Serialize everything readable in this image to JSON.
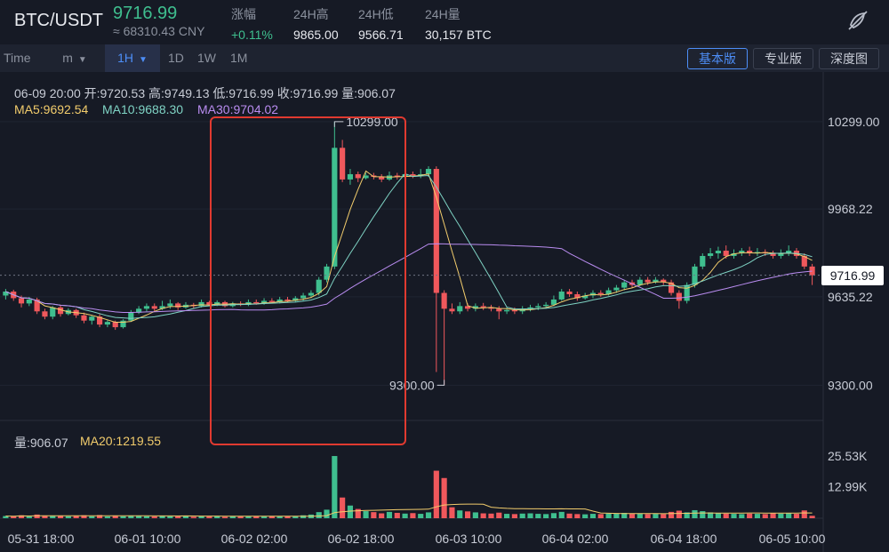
{
  "header": {
    "pair": "BTC/USDT",
    "last_price": "9716.99",
    "cny_price": "≈ 68310.43 CNY",
    "stats": [
      {
        "label": "涨幅",
        "value": "+0.11%",
        "up": true
      },
      {
        "label": "24H高",
        "value": "9865.00",
        "up": false
      },
      {
        "label": "24H低",
        "value": "9566.71",
        "up": false
      },
      {
        "label": "24H量",
        "value": "30,157 BTC",
        "up": false
      }
    ],
    "icon": "chart-settings-icon"
  },
  "toolbar": {
    "time_label": "Time",
    "minute_label": "m",
    "hour_label": "1H",
    "day_label": "1D",
    "week_label": "1W",
    "month_label": "1M",
    "basic_label": "基本版",
    "pro_label": "专业版",
    "depth_label": "深度图",
    "active_interval": "1H",
    "active_version": "基本版"
  },
  "legend": {
    "ohlc": "06-09 20:00  开:9720.53  高:9749.13  低:9716.99  收:9716.99  量:906.07",
    "ma5": "MA5:9692.54",
    "ma10": "MA10:9688.30",
    "ma30": "MA30:9704.02",
    "volume": "量:906.07",
    "ma20": "MA20:1219.55"
  },
  "colors": {
    "up": "#3fbf8f",
    "down": "#f0585c",
    "ma5": "#f2cc6c",
    "ma10": "#7fd3c4",
    "ma30": "#b98cf0",
    "annotation": "#e03a30",
    "accent": "#4d8ef7"
  },
  "chart_data": {
    "type": "candlestick",
    "title": "",
    "ylim": [
      9180,
      10420
    ],
    "y_ticks": [
      "10299.00",
      "9968.22",
      "9635.22",
      "9300.00"
    ],
    "x_ticks": [
      "05-31 18:00",
      "06-01 10:00",
      "06-02 02:00",
      "06-02 18:00",
      "06-03 10:00",
      "06-04 02:00",
      "06-04 18:00",
      "06-05 10:00"
    ],
    "current_price": "9716.99",
    "annotations": {
      "high": "10299.00",
      "low": "9300.00"
    },
    "volume_ticks": [
      "25.53K",
      "12.99K"
    ],
    "volume_max": 27000,
    "candles": [
      [
        9640,
        9655,
        9625,
        9665
      ],
      [
        9655,
        9630,
        9620,
        9662
      ],
      [
        9630,
        9610,
        9595,
        9640
      ],
      [
        9610,
        9625,
        9600,
        9635
      ],
      [
        9625,
        9580,
        9570,
        9632
      ],
      [
        9580,
        9560,
        9550,
        9590
      ],
      [
        9560,
        9595,
        9550,
        9600
      ],
      [
        9595,
        9570,
        9560,
        9605
      ],
      [
        9570,
        9585,
        9565,
        9592
      ],
      [
        9585,
        9565,
        9555,
        9590
      ],
      [
        9565,
        9545,
        9535,
        9575
      ],
      [
        9545,
        9560,
        9530,
        9565
      ],
      [
        9560,
        9530,
        9520,
        9570
      ],
      [
        9530,
        9540,
        9520,
        9548
      ],
      [
        9540,
        9520,
        9510,
        9545
      ],
      [
        9520,
        9545,
        9515,
        9550
      ],
      [
        9545,
        9575,
        9540,
        9585
      ],
      [
        9575,
        9590,
        9570,
        9600
      ],
      [
        9590,
        9600,
        9580,
        9610
      ],
      [
        9600,
        9590,
        9580,
        9610
      ],
      [
        9590,
        9600,
        9585,
        9620
      ],
      [
        9600,
        9610,
        9590,
        9625
      ],
      [
        9610,
        9595,
        9585,
        9615
      ],
      [
        9595,
        9605,
        9590,
        9615
      ],
      [
        9605,
        9600,
        9590,
        9612
      ],
      [
        9600,
        9615,
        9595,
        9625
      ],
      [
        9615,
        9605,
        9600,
        9620
      ],
      [
        9605,
        9615,
        9600,
        9622
      ],
      [
        9615,
        9600,
        9595,
        9620
      ],
      [
        9600,
        9610,
        9595,
        9616
      ],
      [
        9610,
        9605,
        9600,
        9618
      ],
      [
        9605,
        9615,
        9600,
        9625
      ],
      [
        9615,
        9610,
        9605,
        9625
      ],
      [
        9610,
        9620,
        9605,
        9630
      ],
      [
        9620,
        9615,
        9610,
        9630
      ],
      [
        9615,
        9625,
        9610,
        9635
      ],
      [
        9625,
        9620,
        9615,
        9635
      ],
      [
        9620,
        9630,
        9615,
        9638
      ],
      [
        9630,
        9640,
        9620,
        9650
      ],
      [
        9640,
        9650,
        9630,
        9660
      ],
      [
        9650,
        9700,
        9640,
        9710
      ],
      [
        9700,
        9750,
        9690,
        9760
      ],
      [
        9750,
        10200,
        9740,
        10299
      ],
      [
        10200,
        10080,
        10070,
        10230
      ],
      [
        10080,
        10100,
        10060,
        10120
      ],
      [
        10100,
        10085,
        10070,
        10110
      ],
      [
        10085,
        10095,
        10080,
        10105
      ],
      [
        10095,
        10090,
        10080,
        10105
      ],
      [
        10090,
        10080,
        10070,
        10100
      ],
      [
        10080,
        10095,
        10075,
        10110
      ],
      [
        10095,
        10090,
        10080,
        10105
      ],
      [
        10090,
        10100,
        10085,
        10110
      ],
      [
        10100,
        10095,
        10085,
        10110
      ],
      [
        10095,
        10100,
        10085,
        10120
      ],
      [
        10100,
        10120,
        10090,
        10130
      ],
      [
        10120,
        9650,
        9350,
        10130
      ],
      [
        9650,
        9590,
        9300,
        9660
      ],
      [
        9590,
        9580,
        9570,
        9610
      ],
      [
        9580,
        9600,
        9570,
        9615
      ],
      [
        9600,
        9590,
        9580,
        9610
      ],
      [
        9590,
        9600,
        9580,
        9610
      ],
      [
        9600,
        9595,
        9585,
        9612
      ],
      [
        9595,
        9590,
        9580,
        9605
      ],
      [
        9590,
        9580,
        9550,
        9600
      ],
      [
        9580,
        9585,
        9570,
        9595
      ],
      [
        9585,
        9580,
        9570,
        9595
      ],
      [
        9580,
        9590,
        9570,
        9600
      ],
      [
        9590,
        9595,
        9580,
        9605
      ],
      [
        9595,
        9600,
        9585,
        9610
      ],
      [
        9600,
        9605,
        9590,
        9615
      ],
      [
        9605,
        9625,
        9600,
        9640
      ],
      [
        9625,
        9655,
        9620,
        9665
      ],
      [
        9655,
        9645,
        9635,
        9665
      ],
      [
        9645,
        9630,
        9620,
        9655
      ],
      [
        9630,
        9640,
        9625,
        9650
      ],
      [
        9640,
        9650,
        9630,
        9660
      ],
      [
        9650,
        9645,
        9635,
        9660
      ],
      [
        9645,
        9660,
        9640,
        9670
      ],
      [
        9660,
        9670,
        9650,
        9680
      ],
      [
        9670,
        9690,
        9660,
        9700
      ],
      [
        9690,
        9680,
        9670,
        9700
      ],
      [
        9680,
        9700,
        9675,
        9710
      ],
      [
        9700,
        9690,
        9680,
        9710
      ],
      [
        9690,
        9700,
        9685,
        9710
      ],
      [
        9700,
        9690,
        9680,
        9705
      ],
      [
        9690,
        9650,
        9640,
        9700
      ],
      [
        9650,
        9620,
        9590,
        9660
      ],
      [
        9620,
        9680,
        9610,
        9690
      ],
      [
        9680,
        9750,
        9670,
        9760
      ],
      [
        9750,
        9790,
        9740,
        9800
      ],
      [
        9790,
        9800,
        9780,
        9820
      ],
      [
        9800,
        9810,
        9780,
        9825
      ],
      [
        9810,
        9790,
        9780,
        9830
      ],
      [
        9790,
        9800,
        9780,
        9815
      ],
      [
        9800,
        9810,
        9790,
        9820
      ],
      [
        9810,
        9800,
        9790,
        9825
      ],
      [
        9800,
        9805,
        9790,
        9820
      ],
      [
        9805,
        9800,
        9790,
        9815
      ],
      [
        9800,
        9790,
        9780,
        9810
      ],
      [
        9790,
        9800,
        9780,
        9815
      ],
      [
        9800,
        9810,
        9790,
        9830
      ],
      [
        9810,
        9790,
        9780,
        9820
      ],
      [
        9790,
        9750,
        9740,
        9800
      ],
      [
        9750,
        9717,
        9680,
        9760
      ]
    ],
    "volumes": [
      900,
      800,
      1200,
      700,
      1500,
      1100,
      900,
      1000,
      800,
      900,
      1200,
      800,
      1300,
      700,
      1000,
      800,
      1100,
      900,
      800,
      700,
      900,
      800,
      700,
      900,
      600,
      800,
      700,
      900,
      600,
      800,
      700,
      800,
      900,
      700,
      800,
      900,
      800,
      900,
      1200,
      1500,
      2500,
      3500,
      25530,
      8500,
      5200,
      3800,
      2900,
      2500,
      2000,
      2600,
      2200,
      1900,
      2100,
      1800,
      2400,
      19500,
      16500,
      4500,
      3200,
      2800,
      2400,
      2000,
      1900,
      2300,
      1800,
      1700,
      1900,
      2000,
      1800,
      1700,
      2100,
      2600,
      1900,
      1700,
      1600,
      1800,
      1700,
      1900,
      2000,
      2200,
      1800,
      1900,
      1700,
      1800,
      1700,
      2600,
      3100,
      2400,
      3300,
      2900,
      2400,
      2000,
      1900,
      1800,
      1700,
      1900,
      1800,
      1700,
      2000,
      1900,
      2100,
      1800,
      3200,
      1000
    ]
  }
}
